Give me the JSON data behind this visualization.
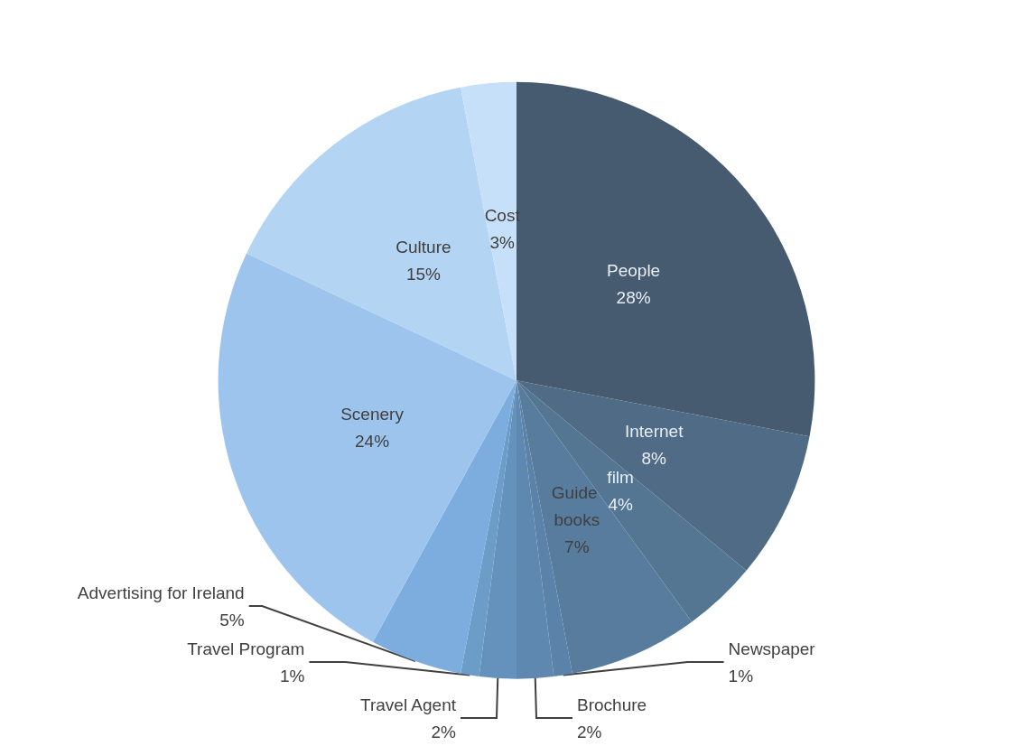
{
  "chart_data": {
    "type": "pie",
    "categories": [
      "People",
      "Internet",
      "film",
      "Guide books",
      "Newspaper",
      "Brochure",
      "Travel Agent",
      "Travel Program",
      "Advertising for Ireland",
      "Scenery",
      "Culture",
      "Cost"
    ],
    "values": [
      28,
      8,
      4,
      7,
      1,
      2,
      2,
      1,
      5,
      24,
      15,
      3
    ],
    "colors": [
      "#465a70",
      "#4f6b86",
      "#547692",
      "#587c9e",
      "#5b82a8",
      "#5f88b0",
      "#6592bc",
      "#6c9dc9",
      "#7cadde",
      "#9dc4ec",
      "#b4d4f4",
      "#c6e0fa"
    ],
    "value_labels": [
      "28%",
      "8%",
      "4%",
      "7%",
      "1%",
      "2%",
      "2%",
      "1%",
      "5%",
      "24%",
      "15%",
      "3%"
    ],
    "legend": false
  }
}
